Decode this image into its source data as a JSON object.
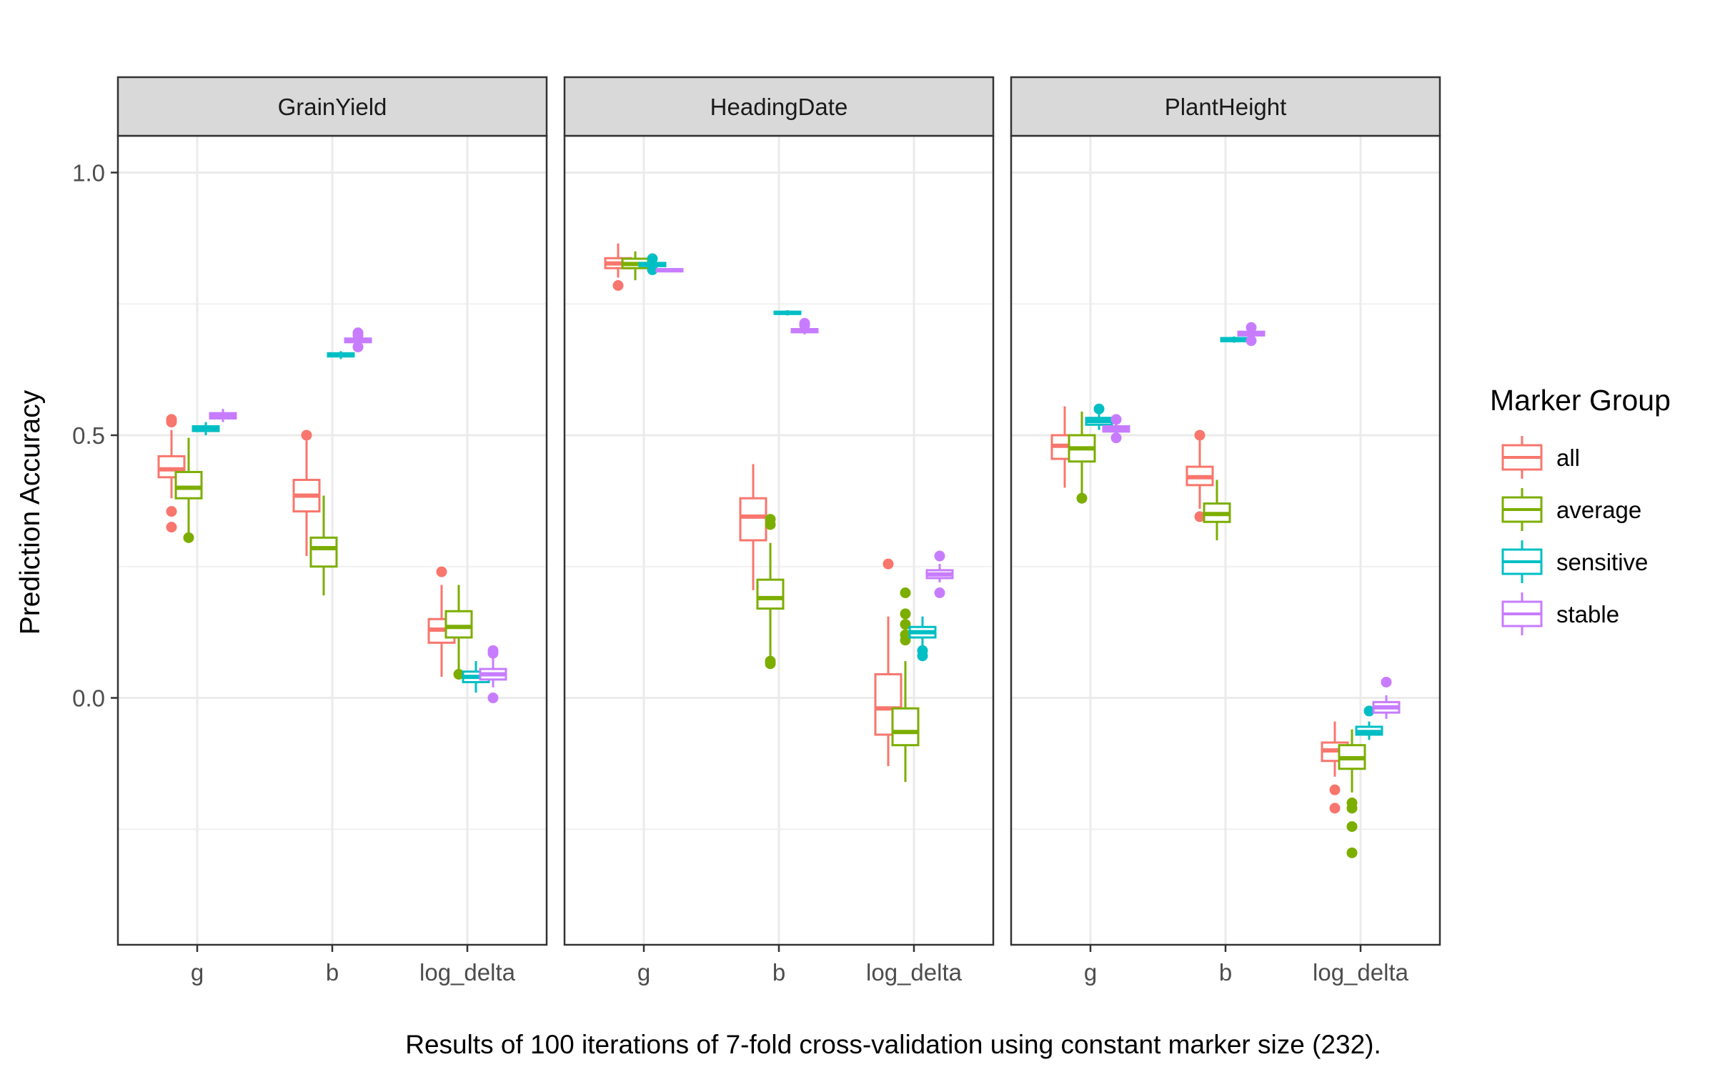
{
  "chart_data": {
    "type": "boxplot",
    "ylabel": "Prediction Accuracy",
    "ylim": [
      -0.47,
      1.07
    ],
    "y_ticks": [
      {
        "value": 1.0,
        "label": "1.0"
      },
      {
        "value": 0.5,
        "label": "0.5"
      },
      {
        "value": 0.0,
        "label": "0.0"
      }
    ],
    "categories": [
      "g",
      "b",
      "log_delta"
    ],
    "legend": {
      "title": "Marker Group",
      "position": "right",
      "entries": [
        "all",
        "average",
        "sensitive",
        "stable"
      ]
    },
    "colors": {
      "all": "#F8766D",
      "average": "#7CAE00",
      "sensitive": "#00BFC4",
      "stable": "#C77CFF"
    },
    "grid": true,
    "caption": "Results of 100 iterations of 7-fold cross-validation using constant marker size (232).",
    "panels": [
      {
        "facet": "GrainYield",
        "boxes": [
          {
            "category": "g",
            "group": "all",
            "min": 0.38,
            "q1": 0.42,
            "median": 0.435,
            "q3": 0.46,
            "max": 0.51,
            "outliers": [
              0.53,
              0.525,
              0.355,
              0.325
            ]
          },
          {
            "category": "g",
            "group": "average",
            "min": 0.31,
            "q1": 0.38,
            "median": 0.4,
            "q3": 0.43,
            "max": 0.495,
            "outliers": [
              0.305
            ]
          },
          {
            "category": "g",
            "group": "sensitive",
            "min": 0.5,
            "q1": 0.508,
            "median": 0.512,
            "q3": 0.517,
            "max": 0.525,
            "outliers": []
          },
          {
            "category": "g",
            "group": "stable",
            "min": 0.525,
            "q1": 0.532,
            "median": 0.537,
            "q3": 0.542,
            "max": 0.55,
            "outliers": []
          },
          {
            "category": "b",
            "group": "all",
            "min": 0.27,
            "q1": 0.355,
            "median": 0.385,
            "q3": 0.415,
            "max": 0.49,
            "outliers": [
              0.5
            ]
          },
          {
            "category": "b",
            "group": "average",
            "min": 0.195,
            "q1": 0.25,
            "median": 0.285,
            "q3": 0.305,
            "max": 0.385,
            "outliers": []
          },
          {
            "category": "b",
            "group": "sensitive",
            "min": 0.645,
            "q1": 0.65,
            "median": 0.653,
            "q3": 0.656,
            "max": 0.66,
            "outliers": []
          },
          {
            "category": "b",
            "group": "stable",
            "min": 0.672,
            "q1": 0.677,
            "median": 0.68,
            "q3": 0.684,
            "max": 0.688,
            "outliers": [
              0.695,
              0.69,
              0.668
            ]
          },
          {
            "category": "log_delta",
            "group": "all",
            "min": 0.04,
            "q1": 0.105,
            "median": 0.13,
            "q3": 0.15,
            "max": 0.215,
            "outliers": [
              0.24
            ]
          },
          {
            "category": "log_delta",
            "group": "average",
            "min": 0.05,
            "q1": 0.115,
            "median": 0.135,
            "q3": 0.165,
            "max": 0.215,
            "outliers": [
              0.045
            ]
          },
          {
            "category": "log_delta",
            "group": "sensitive",
            "min": 0.01,
            "q1": 0.03,
            "median": 0.04,
            "q3": 0.05,
            "max": 0.07,
            "outliers": []
          },
          {
            "category": "log_delta",
            "group": "stable",
            "min": 0.02,
            "q1": 0.035,
            "median": 0.045,
            "q3": 0.055,
            "max": 0.075,
            "outliers": [
              0.09,
              0.085,
              0.0
            ]
          }
        ]
      },
      {
        "facet": "HeadingDate",
        "boxes": [
          {
            "category": "g",
            "group": "all",
            "min": 0.8,
            "q1": 0.818,
            "median": 0.827,
            "q3": 0.837,
            "max": 0.865,
            "outliers": [
              0.785
            ]
          },
          {
            "category": "g",
            "group": "average",
            "min": 0.795,
            "q1": 0.818,
            "median": 0.826,
            "q3": 0.836,
            "max": 0.85,
            "outliers": []
          },
          {
            "category": "g",
            "group": "sensitive",
            "min": 0.818,
            "q1": 0.822,
            "median": 0.825,
            "q3": 0.828,
            "max": 0.832,
            "outliers": [
              0.836,
              0.815
            ]
          },
          {
            "category": "g",
            "group": "stable",
            "min": 0.81,
            "q1": 0.812,
            "median": 0.814,
            "q3": 0.816,
            "max": 0.818,
            "outliers": []
          },
          {
            "category": "b",
            "group": "all",
            "min": 0.205,
            "q1": 0.3,
            "median": 0.345,
            "q3": 0.38,
            "max": 0.445,
            "outliers": []
          },
          {
            "category": "b",
            "group": "average",
            "min": 0.08,
            "q1": 0.17,
            "median": 0.19,
            "q3": 0.225,
            "max": 0.295,
            "outliers": [
              0.34,
              0.33,
              0.07,
              0.065
            ]
          },
          {
            "category": "b",
            "group": "sensitive",
            "min": 0.728,
            "q1": 0.731,
            "median": 0.733,
            "q3": 0.735,
            "max": 0.738,
            "outliers": []
          },
          {
            "category": "b",
            "group": "stable",
            "min": 0.692,
            "q1": 0.696,
            "median": 0.699,
            "q3": 0.702,
            "max": 0.706,
            "outliers": [
              0.713,
              0.709
            ]
          },
          {
            "category": "log_delta",
            "group": "all",
            "min": -0.13,
            "q1": -0.07,
            "median": -0.02,
            "q3": 0.045,
            "max": 0.155,
            "outliers": [
              0.255
            ]
          },
          {
            "category": "log_delta",
            "group": "average",
            "min": -0.16,
            "q1": -0.09,
            "median": -0.065,
            "q3": -0.02,
            "max": 0.07,
            "outliers": [
              0.2,
              0.16,
              0.14,
              0.12,
              0.11
            ]
          },
          {
            "category": "log_delta",
            "group": "sensitive",
            "min": 0.095,
            "q1": 0.115,
            "median": 0.125,
            "q3": 0.135,
            "max": 0.155,
            "outliers": [
              0.09,
              0.08
            ]
          },
          {
            "category": "log_delta",
            "group": "stable",
            "min": 0.22,
            "q1": 0.228,
            "median": 0.235,
            "q3": 0.243,
            "max": 0.255,
            "outliers": [
              0.27,
              0.2
            ]
          }
        ]
      },
      {
        "facet": "PlantHeight",
        "boxes": [
          {
            "category": "g",
            "group": "all",
            "min": 0.4,
            "q1": 0.455,
            "median": 0.48,
            "q3": 0.5,
            "max": 0.555,
            "outliers": []
          },
          {
            "category": "g",
            "group": "average",
            "min": 0.385,
            "q1": 0.45,
            "median": 0.475,
            "q3": 0.5,
            "max": 0.545,
            "outliers": [
              0.38
            ]
          },
          {
            "category": "g",
            "group": "sensitive",
            "min": 0.51,
            "q1": 0.52,
            "median": 0.527,
            "q3": 0.533,
            "max": 0.54,
            "outliers": [
              0.55
            ]
          },
          {
            "category": "g",
            "group": "stable",
            "min": 0.5,
            "q1": 0.507,
            "median": 0.512,
            "q3": 0.517,
            "max": 0.523,
            "outliers": [
              0.53,
              0.495
            ]
          },
          {
            "category": "b",
            "group": "all",
            "min": 0.36,
            "q1": 0.405,
            "median": 0.42,
            "q3": 0.44,
            "max": 0.49,
            "outliers": [
              0.5,
              0.345
            ]
          },
          {
            "category": "b",
            "group": "average",
            "min": 0.3,
            "q1": 0.335,
            "median": 0.35,
            "q3": 0.37,
            "max": 0.415,
            "outliers": []
          },
          {
            "category": "b",
            "group": "sensitive",
            "min": 0.676,
            "q1": 0.679,
            "median": 0.682,
            "q3": 0.685,
            "max": 0.688,
            "outliers": []
          },
          {
            "category": "b",
            "group": "stable",
            "min": 0.685,
            "q1": 0.69,
            "median": 0.693,
            "q3": 0.697,
            "max": 0.7,
            "outliers": [
              0.705,
              0.68
            ]
          },
          {
            "category": "log_delta",
            "group": "all",
            "min": -0.15,
            "q1": -0.12,
            "median": -0.1,
            "q3": -0.085,
            "max": -0.045,
            "outliers": [
              -0.175,
              -0.21
            ]
          },
          {
            "category": "log_delta",
            "group": "average",
            "min": -0.18,
            "q1": -0.135,
            "median": -0.115,
            "q3": -0.09,
            "max": -0.06,
            "outliers": [
              -0.2,
              -0.21,
              -0.245,
              -0.295
            ]
          },
          {
            "category": "log_delta",
            "group": "sensitive",
            "min": -0.08,
            "q1": -0.07,
            "median": -0.065,
            "q3": -0.055,
            "max": -0.045,
            "outliers": [
              -0.025
            ]
          },
          {
            "category": "log_delta",
            "group": "stable",
            "min": -0.04,
            "q1": -0.028,
            "median": -0.018,
            "q3": -0.008,
            "max": 0.005,
            "outliers": [
              0.03
            ]
          }
        ]
      }
    ]
  }
}
